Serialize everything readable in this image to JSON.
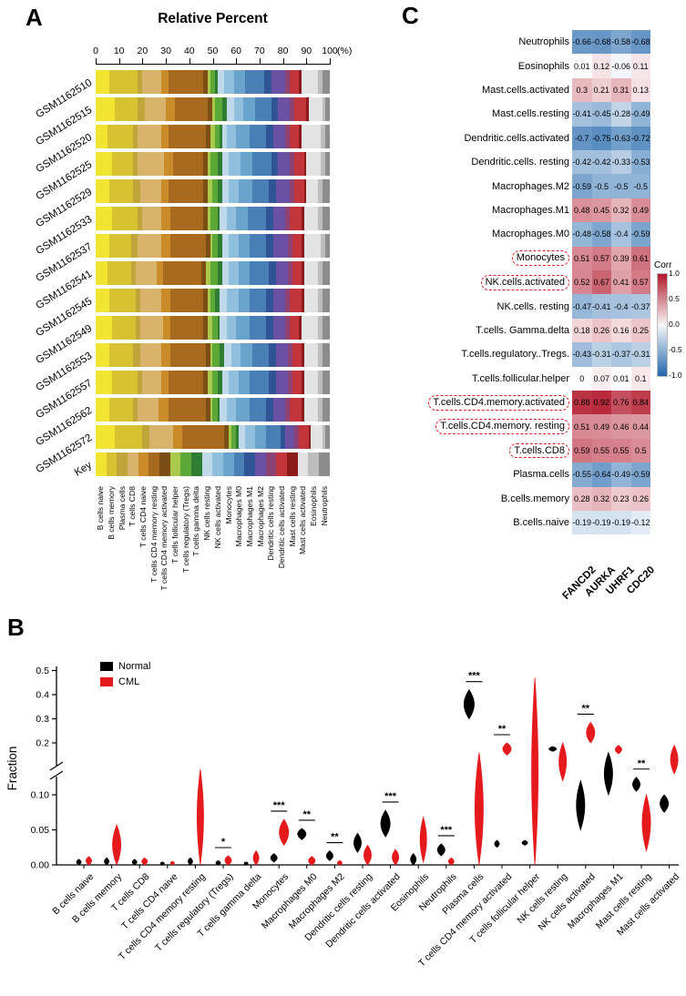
{
  "figure": {
    "panelA_label": "A",
    "panelB_label": "B",
    "panelC_label": "C"
  },
  "chart_data": [
    {
      "type": "bar",
      "stacked": true,
      "id": "panelA",
      "title": "Relative Percent",
      "axis_ticks": [
        0,
        10,
        20,
        30,
        40,
        50,
        60,
        70,
        80,
        90,
        100
      ],
      "axis_unit": "(%)",
      "samples": [
        "GSM1162510",
        "GSM1162515",
        "GSM1162520",
        "GSM1162525",
        "GSM1162529",
        "GSM1162533",
        "GSM1162537",
        "GSM1162541",
        "GSM1162545",
        "GSM1162549",
        "GSM1162553",
        "GSM1162557",
        "GSM1162562",
        "GSM1162572",
        "Key"
      ],
      "cell_types": [
        "B cells naive",
        "B cells memory",
        "Plasma cells",
        "T cells CD8",
        "T cells CD4 naive",
        "T cells CD4 memory resting",
        "T cells CD4 memory activated",
        "T cells follicular helper",
        "T cells regulatory (Tregs)",
        "T cells gamma delta",
        "NK cells resting",
        "NK cells activated",
        "Monocytes",
        "Macrophages M0",
        "Macrophages M1",
        "Macrophages M2",
        "Dendritic cells resting",
        "Dendritic cells activated",
        "Mast cells resting",
        "Mast cells activated",
        "Eosinophils",
        "Neutrophils"
      ],
      "colors": [
        "#F2E531",
        "#D9C232",
        "#BFA53A",
        "#D9B36C",
        "#C98C28",
        "#A86A1E",
        "#7A4E14",
        "#A8C94A",
        "#5BA839",
        "#2E7D32",
        "#BFD8EA",
        "#8FBFDC",
        "#6AA3CC",
        "#4A7FB5",
        "#2F5597",
        "#6A51A3",
        "#8C4374",
        "#C2363B",
        "#8B1A1A",
        "#E3E3E3",
        "#BDBDBD",
        "#8C8C8C"
      ],
      "stacked_values": [
        [
          6,
          12,
          2,
          8,
          3,
          15,
          2,
          1,
          2,
          1,
          3,
          4,
          5,
          8,
          3,
          6,
          2,
          4,
          1,
          7,
          2,
          3
        ],
        [
          8,
          10,
          3,
          9,
          4,
          14,
          2,
          1,
          3,
          2,
          3,
          4,
          5,
          7,
          3,
          5,
          2,
          5,
          1,
          6,
          1,
          2
        ],
        [
          5,
          11,
          2,
          10,
          3,
          16,
          2,
          2,
          2,
          1,
          2,
          4,
          6,
          7,
          3,
          5,
          2,
          4,
          1,
          8,
          2,
          2
        ],
        [
          7,
          9,
          2,
          11,
          4,
          13,
          2,
          1,
          3,
          2,
          3,
          5,
          5,
          8,
          3,
          5,
          2,
          4,
          1,
          6,
          2,
          2
        ],
        [
          6,
          10,
          3,
          9,
          3,
          15,
          2,
          2,
          2,
          2,
          3,
          4,
          6,
          7,
          3,
          6,
          2,
          4,
          1,
          5,
          2,
          3
        ],
        [
          7,
          11,
          2,
          8,
          4,
          14,
          2,
          1,
          3,
          1,
          3,
          4,
          5,
          8,
          3,
          5,
          2,
          5,
          1,
          6,
          2,
          3
        ],
        [
          6,
          9,
          3,
          10,
          4,
          15,
          2,
          1,
          2,
          2,
          3,
          4,
          5,
          7,
          3,
          6,
          2,
          4,
          1,
          7,
          2,
          2
        ],
        [
          5,
          10,
          2,
          9,
          3,
          16,
          2,
          2,
          3,
          2,
          3,
          4,
          5,
          8,
          3,
          5,
          2,
          4,
          1,
          6,
          2,
          3
        ],
        [
          6,
          11,
          2,
          9,
          4,
          14,
          2,
          1,
          2,
          2,
          3,
          5,
          5,
          7,
          3,
          5,
          2,
          5,
          1,
          6,
          2,
          3
        ],
        [
          7,
          10,
          2,
          10,
          3,
          14,
          2,
          2,
          2,
          1,
          3,
          4,
          6,
          7,
          3,
          5,
          2,
          4,
          1,
          7,
          2,
          3
        ],
        [
          6,
          10,
          3,
          9,
          4,
          15,
          2,
          1,
          3,
          2,
          3,
          4,
          5,
          7,
          3,
          5,
          2,
          4,
          1,
          6,
          2,
          3
        ],
        [
          7,
          11,
          2,
          8,
          3,
          15,
          2,
          2,
          2,
          2,
          3,
          4,
          5,
          8,
          3,
          5,
          2,
          4,
          1,
          6,
          2,
          3
        ],
        [
          6,
          10,
          2,
          9,
          4,
          16,
          2,
          1,
          2,
          1,
          3,
          4,
          6,
          7,
          3,
          5,
          2,
          5,
          1,
          6,
          2,
          3
        ],
        [
          8,
          12,
          3,
          10,
          4,
          18,
          2,
          1,
          2,
          1,
          3,
          4,
          5,
          6,
          2,
          4,
          2,
          4,
          1,
          5,
          1,
          2
        ],
        [
          1,
          1,
          1,
          1,
          1,
          1,
          1,
          1,
          1,
          1,
          1,
          1,
          1,
          1,
          1,
          1,
          1,
          1,
          1,
          1,
          1,
          1
        ]
      ]
    },
    {
      "type": "violin",
      "id": "panelB",
      "ylabel": "Fraction",
      "legend": [
        {
          "label": "Normal",
          "color": "#000000"
        },
        {
          "label": "CML",
          "color": "#e41a1c"
        }
      ],
      "ybreak": [
        0.13,
        0.15
      ],
      "yticks": [
        {
          "v": 0,
          "label": "0.00"
        },
        {
          "v": 0.05,
          "label": "0.05"
        },
        {
          "v": 0.1,
          "label": "0.10"
        },
        {
          "v": 0.2,
          "label": "0.2"
        },
        {
          "v": 0.3,
          "label": "0.3"
        },
        {
          "v": 0.4,
          "label": "0.4"
        },
        {
          "v": 0.5,
          "label": "0.5"
        }
      ],
      "categories": [
        {
          "name": "B cells naive",
          "sig": "",
          "normal": {
            "min": 0,
            "max": 0.008,
            "w": 5
          },
          "cml": {
            "min": 0,
            "max": 0.012,
            "w": 6
          }
        },
        {
          "name": "B cells memory",
          "sig": "",
          "normal": {
            "min": 0,
            "max": 0.01,
            "w": 5
          },
          "cml": {
            "min": 0,
            "max": 0.057,
            "w": 9
          }
        },
        {
          "name": "T cells CD8",
          "sig": "",
          "normal": {
            "min": 0,
            "max": 0.008,
            "w": 5
          },
          "cml": {
            "min": 0,
            "max": 0.01,
            "w": 6
          }
        },
        {
          "name": "T cells CD4 naive",
          "sig": "",
          "normal": {
            "min": 0,
            "max": 0.004,
            "w": 4
          },
          "cml": {
            "min": 0,
            "max": 0.005,
            "w": 4
          }
        },
        {
          "name": "T cells CD4 memory resting",
          "sig": "",
          "normal": {
            "min": 0,
            "max": 0.01,
            "w": 5
          },
          "cml": {
            "min": 0,
            "max": 0.135,
            "w": 7
          }
        },
        {
          "name": "T cells regulatory (Tregs)",
          "sig": "*",
          "normal": {
            "min": 0,
            "max": 0.006,
            "w": 5
          },
          "cml": {
            "min": 0,
            "max": 0.013,
            "w": 7
          }
        },
        {
          "name": "T cells gamma delta",
          "sig": "",
          "normal": {
            "min": 0,
            "max": 0.004,
            "w": 4
          },
          "cml": {
            "min": 0,
            "max": 0.02,
            "w": 6
          }
        },
        {
          "name": "Monocytes",
          "sig": "***",
          "normal": {
            "min": 0.004,
            "max": 0.016,
            "w": 7
          },
          "cml": {
            "min": 0.028,
            "max": 0.065,
            "w": 10
          }
        },
        {
          "name": "Macrophages M0",
          "sig": "**",
          "normal": {
            "min": 0.036,
            "max": 0.052,
            "w": 9
          },
          "cml": {
            "min": 0,
            "max": 0.012,
            "w": 7
          }
        },
        {
          "name": "Macrophages M2",
          "sig": "**",
          "normal": {
            "min": 0.006,
            "max": 0.02,
            "w": 7
          },
          "cml": {
            "min": 0,
            "max": 0.006,
            "w": 5
          }
        },
        {
          "name": "Dendritic cells resting",
          "sig": "",
          "normal": {
            "min": 0.018,
            "max": 0.045,
            "w": 8
          },
          "cml": {
            "min": 0,
            "max": 0.028,
            "w": 8
          }
        },
        {
          "name": "Dendritic cells activated",
          "sig": "***",
          "normal": {
            "min": 0.04,
            "max": 0.078,
            "w": 10
          },
          "cml": {
            "min": 0,
            "max": 0.022,
            "w": 7
          }
        },
        {
          "name": "Eosinophils",
          "sig": "",
          "normal": {
            "min": 0,
            "max": 0.016,
            "w": 6
          },
          "cml": {
            "min": 0.004,
            "max": 0.068,
            "w": 7
          }
        },
        {
          "name": "Neutrophils",
          "sig": "***",
          "normal": {
            "min": 0.013,
            "max": 0.03,
            "w": 8
          },
          "cml": {
            "min": 0,
            "max": 0.01,
            "w": 6
          }
        },
        {
          "name": "Plasma cells",
          "sig": "***",
          "normal": {
            "min": 0.3,
            "max": 0.42,
            "w": 11
          },
          "cml": {
            "min": 0,
            "max": 0.16,
            "w": 9
          }
        },
        {
          "name": "T cells CD4 memory activated",
          "sig": "**",
          "normal": {
            "min": 0.025,
            "max": 0.035,
            "w": 5
          },
          "cml": {
            "min": 0.15,
            "max": 0.2,
            "w": 9
          }
        },
        {
          "name": "T cells follicular helper",
          "sig": "",
          "normal": {
            "min": 0.028,
            "max": 0.035,
            "w": 6
          },
          "cml": {
            "min": 0,
            "max": 0.47,
            "w": 7
          }
        },
        {
          "name": "NK cells resting",
          "sig": "",
          "normal": {
            "min": 0.165,
            "max": 0.185,
            "w": 8
          },
          "cml": {
            "min": 0.12,
            "max": 0.2,
            "w": 8
          }
        },
        {
          "name": "NK cells activated",
          "sig": "**",
          "normal": {
            "min": 0.05,
            "max": 0.12,
            "w": 9
          },
          "cml": {
            "min": 0.2,
            "max": 0.285,
            "w": 9
          }
        },
        {
          "name": "Macrophages M1",
          "sig": "",
          "normal": {
            "min": 0.1,
            "max": 0.16,
            "w": 9
          },
          "cml": {
            "min": 0.155,
            "max": 0.19,
            "w": 7
          }
        },
        {
          "name": "Mast cells resting",
          "sig": "**",
          "normal": {
            "min": 0.105,
            "max": 0.125,
            "w": 8
          },
          "cml": {
            "min": 0.02,
            "max": 0.1,
            "w": 9
          }
        },
        {
          "name": "Mast cells activated",
          "sig": "",
          "normal": {
            "min": 0.075,
            "max": 0.1,
            "w": 9
          },
          "cml": {
            "min": 0.13,
            "max": 0.19,
            "w": 8
          }
        }
      ]
    },
    {
      "type": "heatmap",
      "id": "panelC",
      "genes": [
        "FANCD2",
        "AURKA",
        "UHRF1",
        "CDC20"
      ],
      "rows": [
        {
          "name": "Neutrophils",
          "boxed": false,
          "values": [
            -0.66,
            -0.68,
            -0.58,
            -0.68
          ]
        },
        {
          "name": "Eosinophils",
          "boxed": false,
          "values": [
            0.01,
            0.12,
            -0.06,
            0.11
          ]
        },
        {
          "name": "Mast.cells.activated",
          "boxed": false,
          "values": [
            0.3,
            0.21,
            0.31,
            0.13
          ]
        },
        {
          "name": "Mast.cells.resting",
          "boxed": false,
          "values": [
            -0.41,
            -0.45,
            -0.28,
            -0.49
          ]
        },
        {
          "name": "Dendritic.cells.activated",
          "boxed": false,
          "values": [
            -0.7,
            -0.75,
            -0.63,
            -0.72
          ]
        },
        {
          "name": "Dendritic.cells. resting",
          "boxed": false,
          "values": [
            -0.42,
            -0.42,
            -0.33,
            -0.53
          ]
        },
        {
          "name": "Macrophages.M2",
          "boxed": false,
          "values": [
            -0.59,
            -0.5,
            -0.5,
            -0.5
          ]
        },
        {
          "name": "Macrophages.M1",
          "boxed": false,
          "values": [
            0.48,
            0.45,
            0.32,
            0.49
          ]
        },
        {
          "name": "Macrophages.M0",
          "boxed": false,
          "values": [
            -0.48,
            -0.58,
            -0.4,
            -0.59
          ]
        },
        {
          "name": "Monocytes",
          "boxed": true,
          "values": [
            0.51,
            0.57,
            0.39,
            0.61
          ]
        },
        {
          "name": "NK.cells.activated",
          "boxed": true,
          "values": [
            0.52,
            0.67,
            0.41,
            0.57
          ]
        },
        {
          "name": "NK.cells. resting",
          "boxed": false,
          "values": [
            -0.47,
            -0.41,
            -0.4,
            -0.37
          ]
        },
        {
          "name": "T.cells. Gamma.delta",
          "boxed": false,
          "values": [
            0.18,
            0.26,
            0.16,
            0.25
          ]
        },
        {
          "name": "T.cells.regulatory..Tregs.",
          "boxed": false,
          "values": [
            -0.43,
            -0.31,
            -0.37,
            -0.31
          ]
        },
        {
          "name": "T.cells.follicular.helper",
          "boxed": false,
          "values": [
            0,
            0.07,
            0.01,
            0.1
          ]
        },
        {
          "name": "T.cells.CD4.memory.activated",
          "boxed": true,
          "values": [
            0.88,
            0.92,
            0.76,
            0.84
          ]
        },
        {
          "name": "T.cells.CD4.memory. resting",
          "boxed": true,
          "values": [
            0.51,
            0.49,
            0.46,
            0.44
          ]
        },
        {
          "name": "T.cells.CD8",
          "boxed": true,
          "values": [
            0.59,
            0.55,
            0.55,
            0.5
          ]
        },
        {
          "name": "Plasma.cells",
          "boxed": false,
          "values": [
            -0.55,
            -0.64,
            -0.49,
            -0.59
          ]
        },
        {
          "name": "B.cells.memory",
          "boxed": false,
          "values": [
            0.28,
            0.32,
            0.23,
            0.26
          ]
        },
        {
          "name": "B.cells.naive",
          "boxed": false,
          "values": [
            -0.19,
            -0.19,
            -0.19,
            -0.12
          ]
        }
      ],
      "colorbar": {
        "title": "Corr",
        "ticks": [
          {
            "v": 1,
            "label": "1.0"
          },
          {
            "v": 0.5,
            "label": "0.5"
          },
          {
            "v": 0,
            "label": "0.0"
          },
          {
            "v": -0.5,
            "label": "-0.5"
          },
          {
            "v": -1,
            "label": "-1.0"
          }
        ],
        "pos_color": "#B2182B",
        "mid_color": "#F7F7F7",
        "neg_color": "#2166AC"
      }
    }
  ]
}
